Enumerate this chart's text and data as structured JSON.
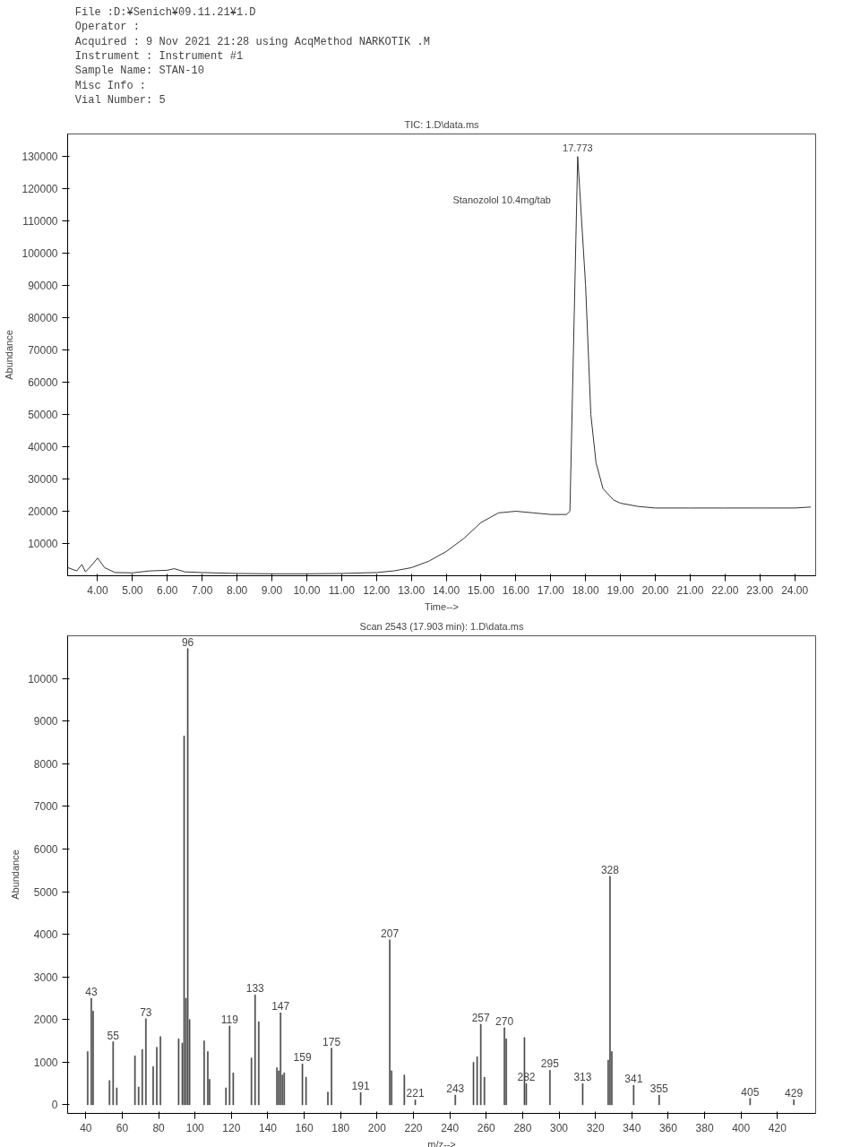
{
  "chart_data": [
    {
      "type": "other",
      "annotations": [
        "File       :D:¥Senich¥09.11.21¥1.D",
        "Operator   :",
        "Acquired   :  9 Nov 2021  21:28      using AcqMethod NARKOTIK .M",
        "Instrument :    Instrument #1",
        "Sample Name: STAN-10",
        "Misc Info  :",
        "Vial Number: 5"
      ]
    },
    {
      "type": "line",
      "title": "TIC: 1.D\\data.ms",
      "xlabel": "Time-->",
      "ylabel": "Abundance",
      "grid": false,
      "marker": "none",
      "line_style": "solid",
      "xlim": [
        3.14,
        24.6
      ],
      "ylim": [
        0,
        137000
      ],
      "xticks": [
        {
          "value": 4,
          "label": "4.00"
        },
        {
          "value": 5,
          "label": "5.00"
        },
        {
          "value": 6,
          "label": "6.00"
        },
        {
          "value": 7,
          "label": "7.00"
        },
        {
          "value": 8,
          "label": "8.00"
        },
        {
          "value": 9,
          "label": "9.00"
        },
        {
          "value": 10,
          "label": "10.00"
        },
        {
          "value": 11,
          "label": "11.00"
        },
        {
          "value": 12,
          "label": "12.00"
        },
        {
          "value": 13,
          "label": "13.00"
        },
        {
          "value": 14,
          "label": "14.00"
        },
        {
          "value": 15,
          "label": "15.00"
        },
        {
          "value": 16,
          "label": "16.00"
        },
        {
          "value": 17,
          "label": "17.00"
        },
        {
          "value": 18,
          "label": "18.00"
        },
        {
          "value": 19,
          "label": "19.00"
        },
        {
          "value": 20,
          "label": "20.00"
        },
        {
          "value": 21,
          "label": "21.00"
        },
        {
          "value": 22,
          "label": "22.00"
        },
        {
          "value": 23,
          "label": "23.00"
        },
        {
          "value": 24,
          "label": "24.00"
        }
      ],
      "yticks": [
        10000,
        20000,
        30000,
        40000,
        50000,
        60000,
        70000,
        80000,
        90000,
        100000,
        110000,
        120000,
        130000
      ],
      "series": [
        {
          "color": "#333333",
          "x": [
            3.15,
            3.4,
            3.55,
            3.65,
            3.85,
            4.0,
            4.2,
            4.5,
            5.0,
            5.5,
            6.0,
            6.2,
            6.5,
            7.0,
            8.0,
            9.0,
            10.0,
            11.0,
            12.0,
            12.5,
            13.0,
            13.5,
            14.0,
            14.5,
            15.0,
            15.5,
            16.0,
            16.5,
            17.0,
            17.45,
            17.55,
            17.773,
            18.0,
            18.15,
            18.3,
            18.5,
            18.8,
            19.0,
            19.5,
            20.0,
            21.0,
            22.0,
            23.0,
            24.0,
            24.45
          ],
          "values": [
            2500,
            1500,
            3500,
            1200,
            3500,
            5500,
            2500,
            1000,
            900,
            1500,
            1700,
            2200,
            1200,
            1000,
            700,
            600,
            600,
            700,
            1000,
            1500,
            2500,
            4500,
            7500,
            11500,
            16500,
            19500,
            20000,
            19500,
            19000,
            19000,
            20000,
            130000,
            90000,
            50000,
            35000,
            27000,
            23500,
            22500,
            21500,
            21000,
            21000,
            21000,
            21000,
            21000,
            21300
          ]
        }
      ],
      "annotations": [
        {
          "text": "17.773",
          "x": 17.773,
          "y": 130000
        },
        {
          "text": "Stanozolol 10.4mg/tab",
          "x": 17.773,
          "y": 115000
        }
      ]
    },
    {
      "type": "bar",
      "title": "Scan 2543 (17.903 min): 1.D\\data.ms",
      "xlabel": "m/z-->",
      "ylabel": "Abundance",
      "grid": false,
      "xlim": [
        30,
        441
      ],
      "ylim": [
        -200,
        11000
      ],
      "xticks": [
        40,
        60,
        80,
        100,
        120,
        140,
        160,
        180,
        200,
        220,
        240,
        260,
        280,
        300,
        320,
        340,
        360,
        380,
        400,
        420
      ],
      "yticks": [
        0,
        1000,
        2000,
        3000,
        4000,
        5000,
        6000,
        7000,
        8000,
        9000,
        10000
      ],
      "color": "#444444",
      "x": [
        41,
        43,
        44,
        53,
        55,
        57,
        67,
        69,
        71,
        73,
        77,
        79,
        81,
        91,
        93,
        94,
        95,
        96,
        97,
        105,
        107,
        108,
        117,
        119,
        121,
        131,
        133,
        135,
        145,
        146,
        147,
        148,
        149,
        159,
        161,
        173,
        175,
        191,
        207,
        208,
        215,
        221,
        243,
        253,
        255,
        257,
        259,
        270,
        271,
        281,
        282,
        295,
        313,
        327,
        328,
        329,
        341,
        355,
        405,
        429
      ],
      "values": [
        1250,
        2500,
        2200,
        570,
        1480,
        400,
        1150,
        420,
        1300,
        2020,
        900,
        1350,
        1600,
        1550,
        1450,
        8650,
        2500,
        10700,
        2000,
        1500,
        1250,
        600,
        400,
        1850,
        750,
        1100,
        2580,
        1950,
        870,
        800,
        2160,
        700,
        750,
        960,
        650,
        300,
        1330,
        290,
        3870,
        800,
        700,
        120,
        230,
        1000,
        1130,
        1890,
        650,
        1810,
        1550,
        1580,
        500,
        810,
        500,
        1050,
        5360,
        1250,
        460,
        230,
        150,
        120
      ],
      "annotations": [
        {
          "text": "43",
          "x": 43,
          "y": 2500
        },
        {
          "text": "55",
          "x": 55,
          "y": 1480
        },
        {
          "text": "73",
          "x": 73,
          "y": 2020
        },
        {
          "text": "96",
          "x": 96,
          "y": 10700
        },
        {
          "text": "119",
          "x": 119,
          "y": 1850
        },
        {
          "text": "133",
          "x": 133,
          "y": 2580
        },
        {
          "text": "147",
          "x": 147,
          "y": 2160
        },
        {
          "text": "159",
          "x": 159,
          "y": 960
        },
        {
          "text": "175",
          "x": 175,
          "y": 1330
        },
        {
          "text": "191",
          "x": 191,
          "y": 290
        },
        {
          "text": "207",
          "x": 207,
          "y": 3870
        },
        {
          "text": "221",
          "x": 221,
          "y": 120
        },
        {
          "text": "243",
          "x": 243,
          "y": 230
        },
        {
          "text": "257",
          "x": 257,
          "y": 1890
        },
        {
          "text": "270",
          "x": 270,
          "y": 1810
        },
        {
          "text": "282",
          "x": 282,
          "y": 500
        },
        {
          "text": "295",
          "x": 295,
          "y": 810
        },
        {
          "text": "313",
          "x": 313,
          "y": 500
        },
        {
          "text": "328",
          "x": 328,
          "y": 5360
        },
        {
          "text": "341",
          "x": 341,
          "y": 460
        },
        {
          "text": "355",
          "x": 355,
          "y": 230
        },
        {
          "text": "405",
          "x": 405,
          "y": 150
        },
        {
          "text": "429",
          "x": 429,
          "y": 120
        }
      ]
    }
  ]
}
